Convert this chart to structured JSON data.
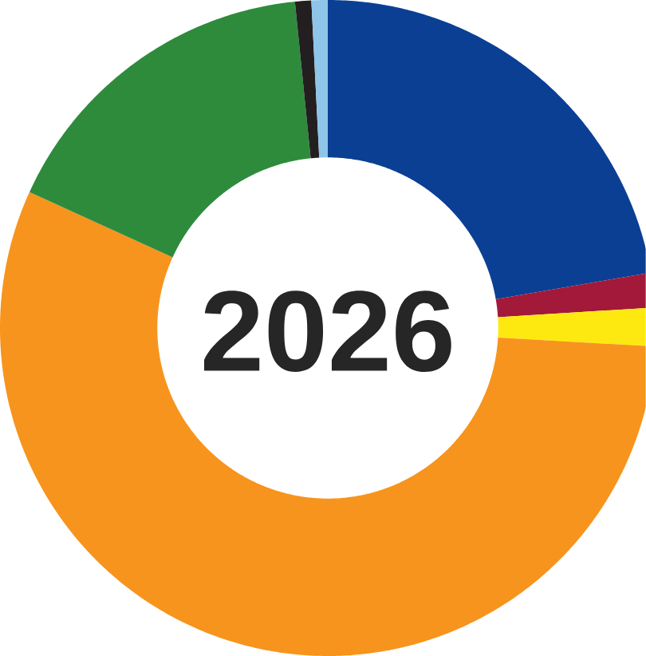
{
  "chart_data": {
    "type": "donut",
    "title": "2026",
    "categories": [
      null,
      null,
      null,
      null,
      null,
      null,
      null
    ],
    "values": [
      22.3,
      1.7,
      1.9,
      55.9,
      16.6,
      0.8,
      0.8
    ],
    "colors": [
      "#0b3f94",
      "#a3193a",
      "#fde910",
      "#f7941d",
      "#2e8b3c",
      "#231f20",
      "#8ec5e8"
    ]
  }
}
